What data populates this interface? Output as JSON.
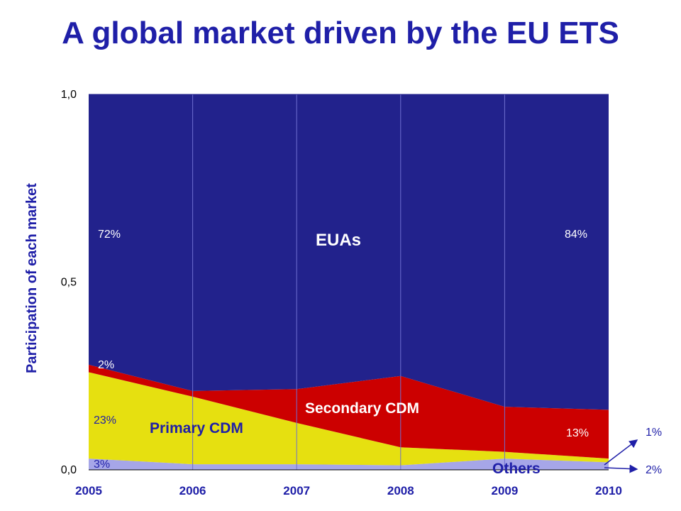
{
  "title": "A global market driven by the EU ETS",
  "chart_data": {
    "type": "area",
    "stacked": true,
    "normalized": true,
    "x": [
      "2005",
      "2006",
      "2007",
      "2008",
      "2009",
      "2010"
    ],
    "ylabel": "Participation of each market",
    "ylim": [
      0,
      1
    ],
    "yticks": [
      "0,0",
      "0,5",
      "1,0"
    ],
    "grid": true,
    "series": [
      {
        "name": "Others",
        "color": "#a6a6e8",
        "values": [
          0.03,
          0.015,
          0.015,
          0.012,
          0.03,
          0.02
        ]
      },
      {
        "name": "Primary CDM",
        "color": "#e6e010",
        "values": [
          0.23,
          0.18,
          0.11,
          0.048,
          0.018,
          0.01
        ]
      },
      {
        "name": "Secondary CDM",
        "color": "#cc0000",
        "values": [
          0.02,
          0.015,
          0.09,
          0.19,
          0.12,
          0.13
        ]
      },
      {
        "name": "EUAs",
        "color": "#22228c",
        "values": [
          0.72,
          0.79,
          0.785,
          0.75,
          0.832,
          0.84
        ]
      }
    ],
    "annotations": [
      {
        "text": "72%",
        "series": "EUAs",
        "x": "2005"
      },
      {
        "text": "84%",
        "series": "EUAs",
        "x": "2010"
      },
      {
        "text": "2%",
        "series": "Secondary CDM",
        "x": "2005"
      },
      {
        "text": "23%",
        "series": "Primary CDM",
        "x": "2005"
      },
      {
        "text": "3%",
        "series": "Others",
        "x": "2005"
      },
      {
        "text": "13%",
        "series": "Secondary CDM",
        "x": "2010"
      },
      {
        "text": "1%",
        "series": "Primary CDM",
        "x": "2010"
      },
      {
        "text": "2%",
        "series": "Others",
        "x": "2010"
      }
    ],
    "area_labels": {
      "euas": "EUAs",
      "secondary": "Secondary CDM",
      "primary": "Primary CDM",
      "others": "Others"
    }
  }
}
